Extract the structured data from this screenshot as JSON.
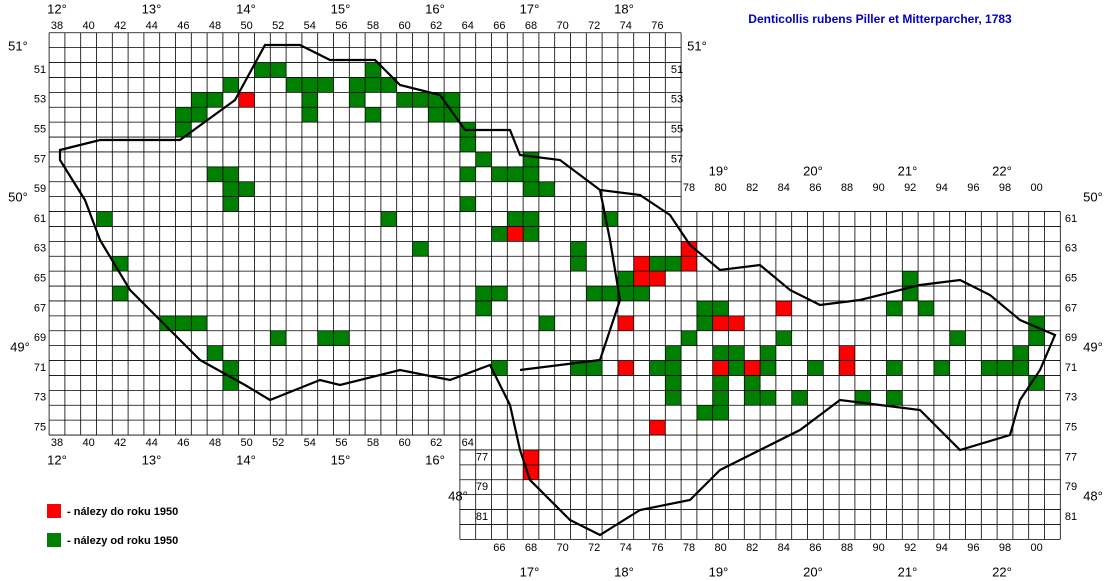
{
  "title": "Denticollis rubens Piller et Mitterparcher, 1783",
  "legend": [
    {
      "label": "- nálezy do roku 1950",
      "color": "#ff0000"
    },
    {
      "label": "- nálezy od roku 1950",
      "color": "#008000"
    }
  ],
  "col_labels_top": [
    "38",
    "40",
    "42",
    "44",
    "46",
    "48",
    "50",
    "52",
    "54",
    "56",
    "58",
    "60",
    "62",
    "64",
    "66",
    "68",
    "70",
    "72",
    "74",
    "76"
  ],
  "col_labels_top_east": [
    "78",
    "80",
    "82",
    "84",
    "86",
    "88",
    "90",
    "92",
    "94",
    "96",
    "98",
    "00"
  ],
  "col_labels_bottom_west": [
    "38",
    "40",
    "42",
    "44",
    "46",
    "48",
    "50",
    "52",
    "54",
    "56",
    "58",
    "60",
    "62",
    "64"
  ],
  "col_labels_bottom_east": [
    "66",
    "68",
    "70",
    "72",
    "74",
    "76",
    "78",
    "80",
    "82",
    "84",
    "86",
    "88",
    "90",
    "92",
    "94",
    "96",
    "98",
    "00"
  ],
  "row_labels_west": [
    "51",
    "53",
    "55",
    "57",
    "59",
    "61",
    "63",
    "65",
    "67",
    "69",
    "71",
    "73",
    "75"
  ],
  "row_labels_northeast": [
    "51",
    "53",
    "55",
    "57"
  ],
  "row_labels_east": [
    "61",
    "63",
    "65",
    "67",
    "69",
    "71",
    "73",
    "75",
    "77",
    "79",
    "81"
  ],
  "row_labels_southwest": [
    "77",
    "79",
    "81"
  ],
  "lon_top": [
    "12°",
    "13°",
    "14°",
    "15°",
    "16°",
    "17°",
    "18°"
  ],
  "lon_top_east": [
    "19°",
    "20°",
    "21°",
    "22°"
  ],
  "lon_bottom_west": [
    "12°",
    "13°",
    "14°",
    "15°",
    "16°"
  ],
  "lon_bottom_east": [
    "17°",
    "18°",
    "19°",
    "20°",
    "21°",
    "22°"
  ],
  "lat_left": [
    "51°",
    "50°",
    "49°",
    "48°"
  ],
  "lat_right": [
    "51°",
    "50°",
    "49°",
    "48°"
  ],
  "records": {
    "before_1950": [
      [
        50,
        53
      ],
      [
        67,
        62
      ],
      [
        75,
        64
      ],
      [
        75,
        65
      ],
      [
        76,
        65
      ],
      [
        78,
        63
      ],
      [
        78,
        64
      ],
      [
        74,
        68
      ],
      [
        74,
        71
      ],
      [
        80,
        68
      ],
      [
        81,
        68
      ],
      [
        80,
        71
      ],
      [
        82,
        71
      ],
      [
        84,
        67
      ],
      [
        88,
        70
      ],
      [
        88,
        71
      ],
      [
        76,
        75
      ],
      [
        68,
        77
      ],
      [
        68,
        78
      ]
    ],
    "since_1950": [
      [
        51,
        51
      ],
      [
        52,
        51
      ],
      [
        53,
        52
      ],
      [
        54,
        52
      ],
      [
        54,
        53
      ],
      [
        54,
        54
      ],
      [
        55,
        52
      ],
      [
        58,
        51
      ],
      [
        57,
        52
      ],
      [
        58,
        52
      ],
      [
        57,
        53
      ],
      [
        58,
        54
      ],
      [
        59,
        52
      ],
      [
        60,
        53
      ],
      [
        61,
        53
      ],
      [
        62,
        53
      ],
      [
        63,
        53
      ],
      [
        62,
        54
      ],
      [
        63,
        54
      ],
      [
        64,
        55
      ],
      [
        64,
        56
      ],
      [
        65,
        57
      ],
      [
        64,
        58
      ],
      [
        66,
        58
      ],
      [
        68,
        57
      ],
      [
        67,
        58
      ],
      [
        68,
        58
      ],
      [
        68,
        59
      ],
      [
        69,
        59
      ],
      [
        64,
        60
      ],
      [
        46,
        54
      ],
      [
        46,
        55
      ],
      [
        47,
        53
      ],
      [
        48,
        53
      ],
      [
        47,
        54
      ],
      [
        49,
        52
      ],
      [
        48,
        58
      ],
      [
        49,
        58
      ],
      [
        49,
        59
      ],
      [
        50,
        59
      ],
      [
        49,
        60
      ],
      [
        41,
        61
      ],
      [
        42,
        64
      ],
      [
        42,
        66
      ],
      [
        45,
        68
      ],
      [
        46,
        68
      ],
      [
        47,
        68
      ],
      [
        48,
        70
      ],
      [
        49,
        71
      ],
      [
        49,
        72
      ],
      [
        52,
        69
      ],
      [
        55,
        69
      ],
      [
        56,
        69
      ],
      [
        59,
        61
      ],
      [
        61,
        63
      ],
      [
        66,
        62
      ],
      [
        67,
        61
      ],
      [
        68,
        61
      ],
      [
        68,
        62
      ],
      [
        73,
        61
      ],
      [
        71,
        63
      ],
      [
        71,
        64
      ],
      [
        76,
        64
      ],
      [
        77,
        64
      ],
      [
        74,
        65
      ],
      [
        72,
        66
      ],
      [
        73,
        66
      ],
      [
        74,
        66
      ],
      [
        75,
        66
      ],
      [
        65,
        66
      ],
      [
        66,
        66
      ],
      [
        65,
        67
      ],
      [
        69,
        68
      ],
      [
        71,
        71
      ],
      [
        72,
        71
      ],
      [
        66,
        71
      ],
      [
        76,
        71
      ],
      [
        77,
        70
      ],
      [
        77,
        71
      ],
      [
        77,
        72
      ],
      [
        78,
        69
      ],
      [
        79,
        67
      ],
      [
        79,
        68
      ],
      [
        80,
        67
      ],
      [
        80,
        70
      ],
      [
        81,
        70
      ],
      [
        80,
        72
      ],
      [
        80,
        73
      ],
      [
        79,
        74
      ],
      [
        80,
        74
      ],
      [
        81,
        71
      ],
      [
        82,
        72
      ],
      [
        82,
        73
      ],
      [
        83,
        70
      ],
      [
        83,
        71
      ],
      [
        83,
        73
      ],
      [
        84,
        69
      ],
      [
        85,
        73
      ],
      [
        86,
        71
      ],
      [
        89,
        73
      ],
      [
        91,
        71
      ],
      [
        91,
        73
      ],
      [
        91,
        67
      ],
      [
        92,
        65
      ],
      [
        92,
        66
      ],
      [
        93,
        67
      ],
      [
        94,
        71
      ],
      [
        95,
        69
      ],
      [
        97,
        71
      ],
      [
        98,
        71
      ],
      [
        99,
        71
      ],
      [
        99,
        70
      ],
      [
        100,
        68
      ],
      [
        100,
        69
      ],
      [
        100,
        72
      ],
      [
        77,
        73
      ]
    ]
  }
}
